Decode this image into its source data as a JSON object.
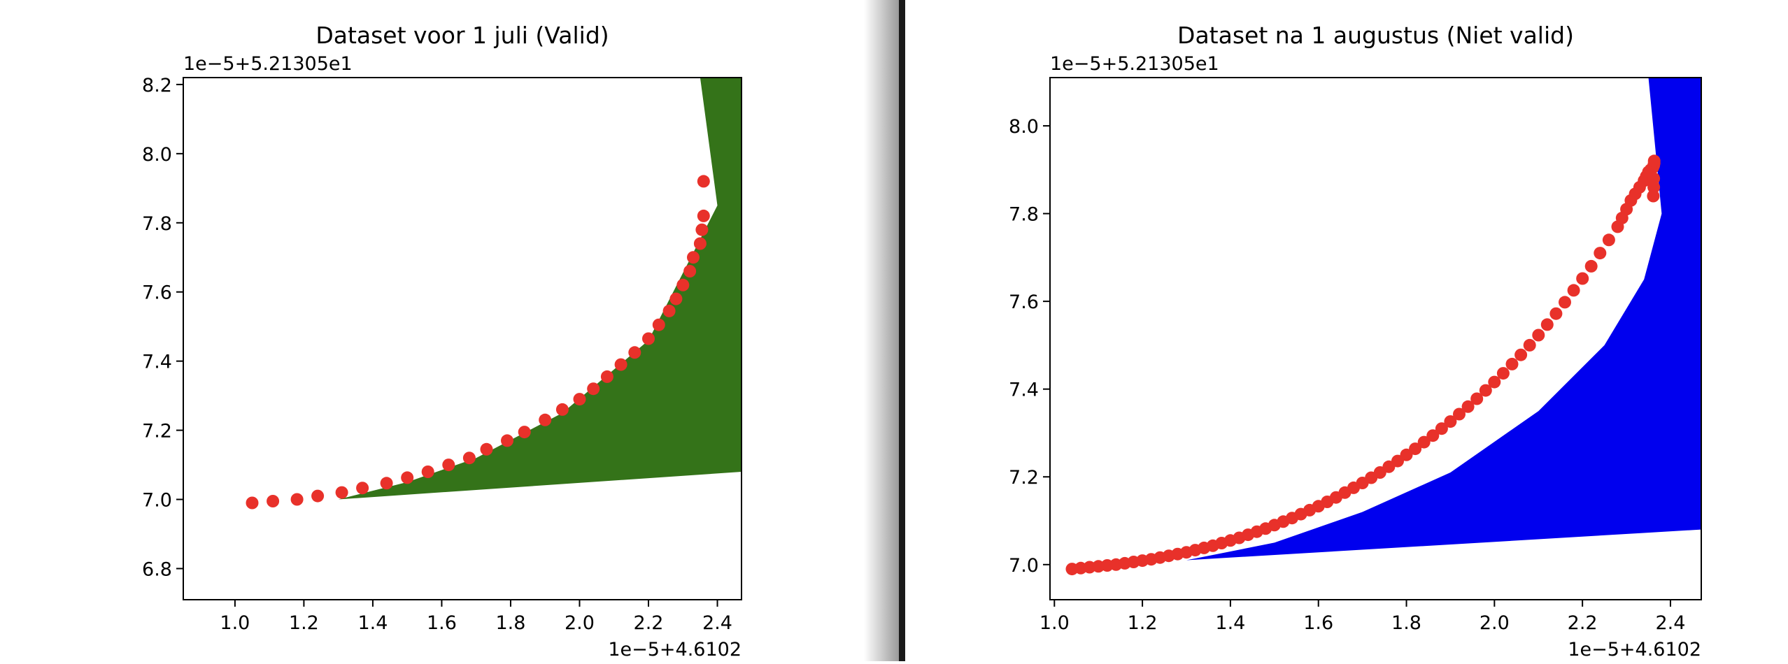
{
  "chart_data": [
    {
      "type": "scatter",
      "title": "Dataset voor 1 juli (Valid)",
      "x_offset_label": "1e−5+4.6102",
      "y_offset_label": "1e−5+5.21305e1",
      "xlim": [
        0.85,
        2.47
      ],
      "ylim": [
        6.71,
        8.22
      ],
      "x_ticks": [
        "1.0",
        "1.2",
        "1.4",
        "1.6",
        "1.8",
        "2.0",
        "2.2",
        "2.4"
      ],
      "y_ticks": [
        "6.8",
        "7.0",
        "7.2",
        "7.4",
        "7.6",
        "7.8",
        "8.0",
        "8.2"
      ],
      "marker_color": "#e8312a",
      "fill_color": "#347319",
      "fill_polygon": {
        "x": [
          1.3,
          2.47,
          2.47,
          2.35,
          2.4,
          2.2,
          1.95,
          1.7,
          1.5,
          1.3
        ],
        "y": [
          7.0,
          7.08,
          8.22,
          8.22,
          7.85,
          7.46,
          7.25,
          7.12,
          7.05,
          7.0
        ]
      },
      "series": [
        {
          "x": [
            1.05,
            1.11,
            1.18,
            1.24,
            1.31,
            1.37,
            1.44,
            1.5,
            1.56,
            1.62,
            1.68,
            1.73,
            1.79,
            1.84,
            1.9,
            1.95,
            2.0,
            2.04,
            2.08,
            2.12,
            2.16,
            2.2,
            2.23,
            2.26,
            2.28,
            2.3,
            2.32,
            2.33,
            2.35,
            2.355,
            2.36,
            2.36
          ],
          "y": [
            6.99,
            6.995,
            7.0,
            7.01,
            7.02,
            7.033,
            7.047,
            7.063,
            7.08,
            7.1,
            7.12,
            7.145,
            7.17,
            7.195,
            7.23,
            7.26,
            7.29,
            7.32,
            7.355,
            7.39,
            7.425,
            7.465,
            7.505,
            7.545,
            7.58,
            7.62,
            7.66,
            7.7,
            7.74,
            7.78,
            7.82,
            7.92
          ]
        }
      ]
    },
    {
      "type": "scatter",
      "title": "Dataset na 1 augustus (Niet valid)",
      "x_offset_label": "1e−5+4.6102",
      "y_offset_label": "1e−5+5.21305e1",
      "xlim": [
        0.99,
        2.47
      ],
      "ylim": [
        6.92,
        8.11
      ],
      "x_ticks": [
        "1.0",
        "1.2",
        "1.4",
        "1.6",
        "1.8",
        "2.0",
        "2.2",
        "2.4"
      ],
      "y_ticks": [
        "7.0",
        "7.2",
        "7.4",
        "7.6",
        "7.8",
        "8.0"
      ],
      "marker_color": "#e8312a",
      "fill_color": "#0000ee",
      "fill_polygon": {
        "x": [
          1.3,
          2.47,
          2.47,
          2.35,
          2.38,
          2.34,
          2.25,
          2.1,
          1.9,
          1.7,
          1.5,
          1.3
        ],
        "y": [
          7.01,
          7.08,
          8.11,
          8.11,
          7.8,
          7.65,
          7.5,
          7.35,
          7.21,
          7.12,
          7.05,
          7.01
        ]
      },
      "series": [
        {
          "x": [
            1.04,
            1.06,
            1.08,
            1.1,
            1.12,
            1.14,
            1.16,
            1.18,
            1.2,
            1.22,
            1.24,
            1.26,
            1.28,
            1.3,
            1.32,
            1.34,
            1.36,
            1.38,
            1.4,
            1.42,
            1.44,
            1.46,
            1.48,
            1.5,
            1.52,
            1.54,
            1.56,
            1.58,
            1.6,
            1.62,
            1.64,
            1.66,
            1.68,
            1.7,
            1.72,
            1.74,
            1.76,
            1.78,
            1.8,
            1.82,
            1.84,
            1.86,
            1.88,
            1.9,
            1.92,
            1.94,
            1.96,
            1.98,
            2.0,
            2.02,
            2.04,
            2.06,
            2.08,
            2.1,
            2.12,
            2.14,
            2.16,
            2.18,
            2.2,
            2.22,
            2.24,
            2.26,
            2.28,
            2.29,
            2.3,
            2.31,
            2.32,
            2.33,
            2.34,
            2.345,
            2.35,
            2.355,
            2.36,
            2.362,
            2.363,
            2.363,
            2.362,
            2.362,
            2.361
          ],
          "y": [
            6.99,
            6.992,
            6.994,
            6.996,
            6.998,
            7.0,
            7.003,
            7.006,
            7.009,
            7.012,
            7.016,
            7.02,
            7.024,
            7.028,
            7.033,
            7.038,
            7.043,
            7.049,
            7.055,
            7.061,
            7.068,
            7.075,
            7.082,
            7.09,
            7.098,
            7.106,
            7.115,
            7.124,
            7.133,
            7.143,
            7.153,
            7.164,
            7.175,
            7.186,
            7.198,
            7.21,
            7.223,
            7.236,
            7.25,
            7.264,
            7.279,
            7.294,
            7.31,
            7.326,
            7.343,
            7.36,
            7.378,
            7.397,
            7.416,
            7.436,
            7.457,
            7.478,
            7.5,
            7.523,
            7.547,
            7.572,
            7.598,
            7.625,
            7.652,
            7.68,
            7.71,
            7.74,
            7.77,
            7.79,
            7.81,
            7.83,
            7.845,
            7.86,
            7.875,
            7.885,
            7.895,
            7.9,
            7.905,
            7.91,
            7.915,
            7.92,
            7.88,
            7.86,
            7.84
          ]
        }
      ]
    }
  ]
}
